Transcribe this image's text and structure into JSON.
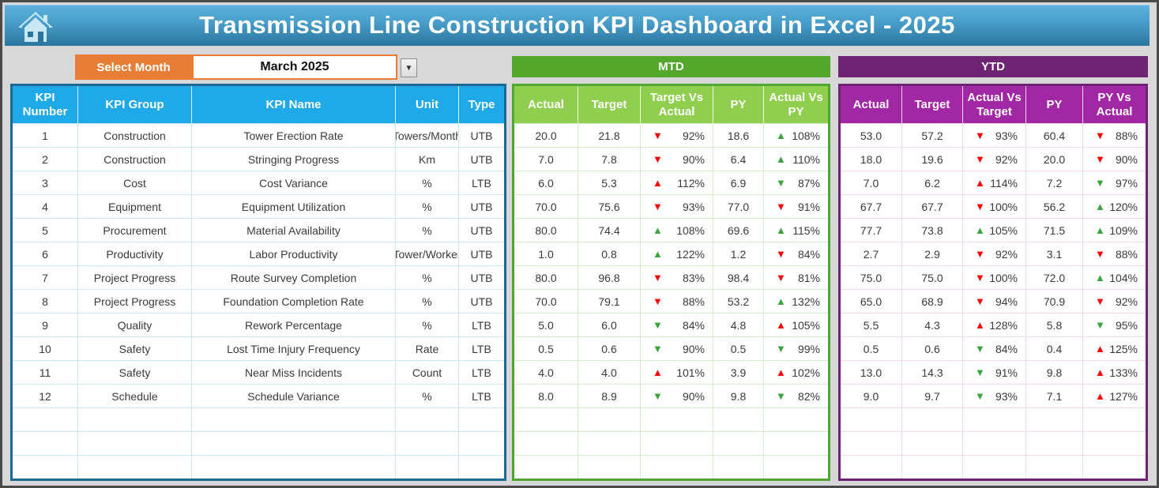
{
  "header": {
    "title": "Transmission Line Construction KPI Dashboard in Excel - 2025"
  },
  "controls": {
    "select_month_label": "Select Month",
    "selected_month": "March 2025",
    "dropdown_glyph": "▼"
  },
  "sections": {
    "mtd_label": "MTD",
    "ytd_label": "YTD"
  },
  "colors": {
    "title_blue_top": "#5DB3DD",
    "title_blue_bottom": "#2A759F",
    "info_header_blue": "#1FA9E8",
    "info_border_blue": "#1A6A96",
    "orange": "#E87E35",
    "mtd_band_green": "#53A82B",
    "mtd_header_green": "#8FCE4E",
    "ytd_band_purple": "#6F2473",
    "ytd_header_magenta": "#A227A5",
    "arrow_red": "#FE0000",
    "arrow_green": "#3AA53A"
  },
  "table": {
    "info_headers": [
      "KPI Number",
      "KPI Group",
      "KPI Name",
      "Unit",
      "Type"
    ],
    "mtd_headers": [
      "Actual",
      "Target",
      "Target Vs Actual",
      "PY",
      "Actual Vs PY"
    ],
    "ytd_headers": [
      "Actual",
      "Target",
      "Actual Vs Target",
      "PY",
      "PY Vs Actual"
    ],
    "empty_row_count": 3,
    "rows": [
      {
        "kpi_number": "1",
        "kpi_group": "Construction",
        "kpi_name": "Tower Erection Rate",
        "unit": "Towers/Month",
        "type": "UTB",
        "mtd_actual": "20.0",
        "mtd_target": "21.8",
        "mtd_target_vs_actual": {
          "arrow": "down",
          "color": "red",
          "value": "92%"
        },
        "mtd_py": "18.6",
        "mtd_actual_vs_py": {
          "arrow": "up",
          "color": "green",
          "value": "108%"
        },
        "ytd_actual": "53.0",
        "ytd_target": "57.2",
        "ytd_actual_vs_target": {
          "arrow": "down",
          "color": "red",
          "value": "93%"
        },
        "ytd_py": "60.4",
        "ytd_py_vs_actual": {
          "arrow": "down",
          "color": "red",
          "value": "88%"
        }
      },
      {
        "kpi_number": "2",
        "kpi_group": "Construction",
        "kpi_name": "Stringing Progress",
        "unit": "Km",
        "type": "UTB",
        "mtd_actual": "7.0",
        "mtd_target": "7.8",
        "mtd_target_vs_actual": {
          "arrow": "down",
          "color": "red",
          "value": "90%"
        },
        "mtd_py": "6.4",
        "mtd_actual_vs_py": {
          "arrow": "up",
          "color": "green",
          "value": "110%"
        },
        "ytd_actual": "18.0",
        "ytd_target": "19.6",
        "ytd_actual_vs_target": {
          "arrow": "down",
          "color": "red",
          "value": "92%"
        },
        "ytd_py": "20.0",
        "ytd_py_vs_actual": {
          "arrow": "down",
          "color": "red",
          "value": "90%"
        }
      },
      {
        "kpi_number": "3",
        "kpi_group": "Cost",
        "kpi_name": "Cost Variance",
        "unit": "%",
        "type": "LTB",
        "mtd_actual": "6.0",
        "mtd_target": "5.3",
        "mtd_target_vs_actual": {
          "arrow": "up",
          "color": "red",
          "value": "112%"
        },
        "mtd_py": "6.9",
        "mtd_actual_vs_py": {
          "arrow": "down",
          "color": "green",
          "value": "87%"
        },
        "ytd_actual": "7.0",
        "ytd_target": "6.2",
        "ytd_actual_vs_target": {
          "arrow": "up",
          "color": "red",
          "value": "114%"
        },
        "ytd_py": "7.2",
        "ytd_py_vs_actual": {
          "arrow": "down",
          "color": "green",
          "value": "97%"
        }
      },
      {
        "kpi_number": "4",
        "kpi_group": "Equipment",
        "kpi_name": "Equipment Utilization",
        "unit": "%",
        "type": "UTB",
        "mtd_actual": "70.0",
        "mtd_target": "75.6",
        "mtd_target_vs_actual": {
          "arrow": "down",
          "color": "red",
          "value": "93%"
        },
        "mtd_py": "77.0",
        "mtd_actual_vs_py": {
          "arrow": "down",
          "color": "red",
          "value": "91%"
        },
        "ytd_actual": "67.7",
        "ytd_target": "67.7",
        "ytd_actual_vs_target": {
          "arrow": "down",
          "color": "red",
          "value": "100%"
        },
        "ytd_py": "56.2",
        "ytd_py_vs_actual": {
          "arrow": "up",
          "color": "green",
          "value": "120%"
        }
      },
      {
        "kpi_number": "5",
        "kpi_group": "Procurement",
        "kpi_name": "Material Availability",
        "unit": "%",
        "type": "UTB",
        "mtd_actual": "80.0",
        "mtd_target": "74.4",
        "mtd_target_vs_actual": {
          "arrow": "up",
          "color": "green",
          "value": "108%"
        },
        "mtd_py": "69.6",
        "mtd_actual_vs_py": {
          "arrow": "up",
          "color": "green",
          "value": "115%"
        },
        "ytd_actual": "77.7",
        "ytd_target": "73.8",
        "ytd_actual_vs_target": {
          "arrow": "up",
          "color": "green",
          "value": "105%"
        },
        "ytd_py": "71.5",
        "ytd_py_vs_actual": {
          "arrow": "up",
          "color": "green",
          "value": "109%"
        }
      },
      {
        "kpi_number": "6",
        "kpi_group": "Productivity",
        "kpi_name": "Labor Productivity",
        "unit": "Tower/Worker",
        "type": "UTB",
        "mtd_actual": "1.0",
        "mtd_target": "0.8",
        "mtd_target_vs_actual": {
          "arrow": "up",
          "color": "green",
          "value": "122%"
        },
        "mtd_py": "1.2",
        "mtd_actual_vs_py": {
          "arrow": "down",
          "color": "red",
          "value": "84%"
        },
        "ytd_actual": "2.7",
        "ytd_target": "2.9",
        "ytd_actual_vs_target": {
          "arrow": "down",
          "color": "red",
          "value": "92%"
        },
        "ytd_py": "3.1",
        "ytd_py_vs_actual": {
          "arrow": "down",
          "color": "red",
          "value": "88%"
        }
      },
      {
        "kpi_number": "7",
        "kpi_group": "Project Progress",
        "kpi_name": "Route Survey Completion",
        "unit": "%",
        "type": "UTB",
        "mtd_actual": "80.0",
        "mtd_target": "96.8",
        "mtd_target_vs_actual": {
          "arrow": "down",
          "color": "red",
          "value": "83%"
        },
        "mtd_py": "98.4",
        "mtd_actual_vs_py": {
          "arrow": "down",
          "color": "red",
          "value": "81%"
        },
        "ytd_actual": "75.0",
        "ytd_target": "75.0",
        "ytd_actual_vs_target": {
          "arrow": "down",
          "color": "red",
          "value": "100%"
        },
        "ytd_py": "72.0",
        "ytd_py_vs_actual": {
          "arrow": "up",
          "color": "green",
          "value": "104%"
        }
      },
      {
        "kpi_number": "8",
        "kpi_group": "Project Progress",
        "kpi_name": "Foundation Completion Rate",
        "unit": "%",
        "type": "UTB",
        "mtd_actual": "70.0",
        "mtd_target": "79.1",
        "mtd_target_vs_actual": {
          "arrow": "down",
          "color": "red",
          "value": "88%"
        },
        "mtd_py": "53.2",
        "mtd_actual_vs_py": {
          "arrow": "up",
          "color": "green",
          "value": "132%"
        },
        "ytd_actual": "65.0",
        "ytd_target": "68.9",
        "ytd_actual_vs_target": {
          "arrow": "down",
          "color": "red",
          "value": "94%"
        },
        "ytd_py": "70.9",
        "ytd_py_vs_actual": {
          "arrow": "down",
          "color": "red",
          "value": "92%"
        }
      },
      {
        "kpi_number": "9",
        "kpi_group": "Quality",
        "kpi_name": "Rework Percentage",
        "unit": "%",
        "type": "LTB",
        "mtd_actual": "5.0",
        "mtd_target": "6.0",
        "mtd_target_vs_actual": {
          "arrow": "down",
          "color": "green",
          "value": "84%"
        },
        "mtd_py": "4.8",
        "mtd_actual_vs_py": {
          "arrow": "up",
          "color": "red",
          "value": "105%"
        },
        "ytd_actual": "5.5",
        "ytd_target": "4.3",
        "ytd_actual_vs_target": {
          "arrow": "up",
          "color": "red",
          "value": "128%"
        },
        "ytd_py": "5.8",
        "ytd_py_vs_actual": {
          "arrow": "down",
          "color": "green",
          "value": "95%"
        }
      },
      {
        "kpi_number": "10",
        "kpi_group": "Safety",
        "kpi_name": "Lost Time Injury Frequency",
        "unit": "Rate",
        "type": "LTB",
        "mtd_actual": "0.5",
        "mtd_target": "0.6",
        "mtd_target_vs_actual": {
          "arrow": "down",
          "color": "green",
          "value": "90%"
        },
        "mtd_py": "0.5",
        "mtd_actual_vs_py": {
          "arrow": "down",
          "color": "green",
          "value": "99%"
        },
        "ytd_actual": "0.5",
        "ytd_target": "0.6",
        "ytd_actual_vs_target": {
          "arrow": "down",
          "color": "green",
          "value": "84%"
        },
        "ytd_py": "0.4",
        "ytd_py_vs_actual": {
          "arrow": "up",
          "color": "red",
          "value": "125%"
        }
      },
      {
        "kpi_number": "11",
        "kpi_group": "Safety",
        "kpi_name": "Near Miss Incidents",
        "unit": "Count",
        "type": "LTB",
        "mtd_actual": "4.0",
        "mtd_target": "4.0",
        "mtd_target_vs_actual": {
          "arrow": "up",
          "color": "red",
          "value": "101%"
        },
        "mtd_py": "3.9",
        "mtd_actual_vs_py": {
          "arrow": "up",
          "color": "red",
          "value": "102%"
        },
        "ytd_actual": "13.0",
        "ytd_target": "14.3",
        "ytd_actual_vs_target": {
          "arrow": "down",
          "color": "green",
          "value": "91%"
        },
        "ytd_py": "9.8",
        "ytd_py_vs_actual": {
          "arrow": "up",
          "color": "red",
          "value": "133%"
        }
      },
      {
        "kpi_number": "12",
        "kpi_group": "Schedule",
        "kpi_name": "Schedule Variance",
        "unit": "%",
        "type": "LTB",
        "mtd_actual": "8.0",
        "mtd_target": "8.9",
        "mtd_target_vs_actual": {
          "arrow": "down",
          "color": "green",
          "value": "90%"
        },
        "mtd_py": "9.8",
        "mtd_actual_vs_py": {
          "arrow": "down",
          "color": "green",
          "value": "82%"
        },
        "ytd_actual": "9.0",
        "ytd_target": "9.7",
        "ytd_actual_vs_target": {
          "arrow": "down",
          "color": "green",
          "value": "93%"
        },
        "ytd_py": "7.1",
        "ytd_py_vs_actual": {
          "arrow": "up",
          "color": "red",
          "value": "127%"
        }
      }
    ]
  }
}
